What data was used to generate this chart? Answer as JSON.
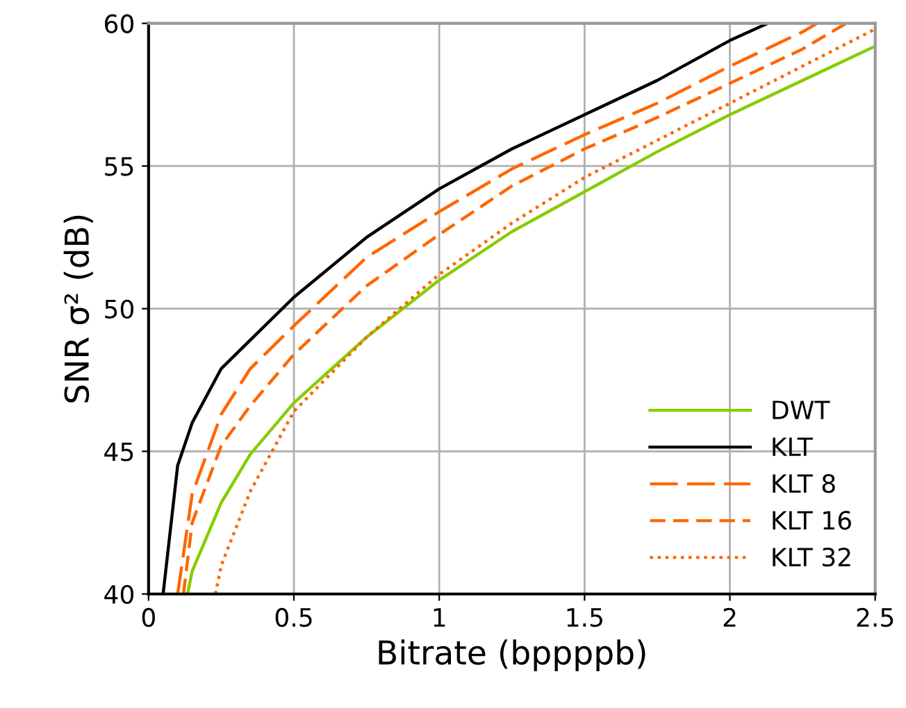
{
  "chart_data": {
    "type": "line",
    "xlabel": "Bitrate (bppppb)",
    "ylabel": "SNR σ² (dB)",
    "xlim": [
      0,
      2.5
    ],
    "ylim": [
      40,
      60
    ],
    "xticks": [
      0,
      0.5,
      1,
      1.5,
      2,
      2.5
    ],
    "yticks": [
      40,
      45,
      50,
      55,
      60
    ],
    "grid": true,
    "legend": "bottom right",
    "marker": "none",
    "series": [
      {
        "name": "DWT",
        "color": "#88cc00",
        "line_style": "solid",
        "x": [
          0.134,
          0.15,
          0.25,
          0.35,
          0.5,
          0.75,
          1.0,
          1.25,
          1.5,
          1.75,
          2.0,
          2.25,
          2.5
        ],
        "values": [
          40,
          40.8,
          43.2,
          44.9,
          46.7,
          49.0,
          51.0,
          52.7,
          54.1,
          55.5,
          56.8,
          58.0,
          59.2
        ]
      },
      {
        "name": "KLT",
        "color": "#000000",
        "line_style": "solid",
        "x": [
          0.05,
          0.1,
          0.15,
          0.25,
          0.35,
          0.5,
          0.75,
          1.0,
          1.25,
          1.5,
          1.75,
          2.0,
          2.13
        ],
        "values": [
          40,
          44.5,
          46.0,
          47.9,
          48.9,
          50.4,
          52.5,
          54.2,
          55.6,
          56.8,
          58.0,
          59.4,
          60
        ]
      },
      {
        "name": "KLT 8",
        "color": "#ff6600",
        "line_style": "long_dashed",
        "x": [
          0.1,
          0.15,
          0.25,
          0.35,
          0.5,
          0.75,
          1.0,
          1.25,
          1.5,
          1.75,
          2.0,
          2.25,
          2.3
        ],
        "values": [
          40,
          43.5,
          46.3,
          47.9,
          49.4,
          51.8,
          53.4,
          54.9,
          56.1,
          57.2,
          58.5,
          59.7,
          60
        ]
      },
      {
        "name": "KLT 16",
        "color": "#ff6600",
        "line_style": "dashed",
        "x": [
          0.12,
          0.15,
          0.25,
          0.35,
          0.5,
          0.75,
          1.0,
          1.25,
          1.5,
          1.75,
          2.0,
          2.25,
          2.4
        ],
        "values": [
          40,
          42.5,
          45.2,
          46.6,
          48.4,
          50.8,
          52.6,
          54.3,
          55.6,
          56.7,
          57.9,
          59.1,
          60
        ]
      },
      {
        "name": "KLT 32",
        "color": "#ff6600",
        "line_style": "dotted",
        "x": [
          0.23,
          0.25,
          0.35,
          0.5,
          0.75,
          1.0,
          1.25,
          1.5,
          1.75,
          2.0,
          2.25,
          2.5
        ],
        "values": [
          40,
          41.0,
          43.6,
          46.4,
          49.0,
          51.2,
          53.0,
          54.6,
          55.9,
          57.2,
          58.5,
          59.8
        ]
      }
    ]
  }
}
